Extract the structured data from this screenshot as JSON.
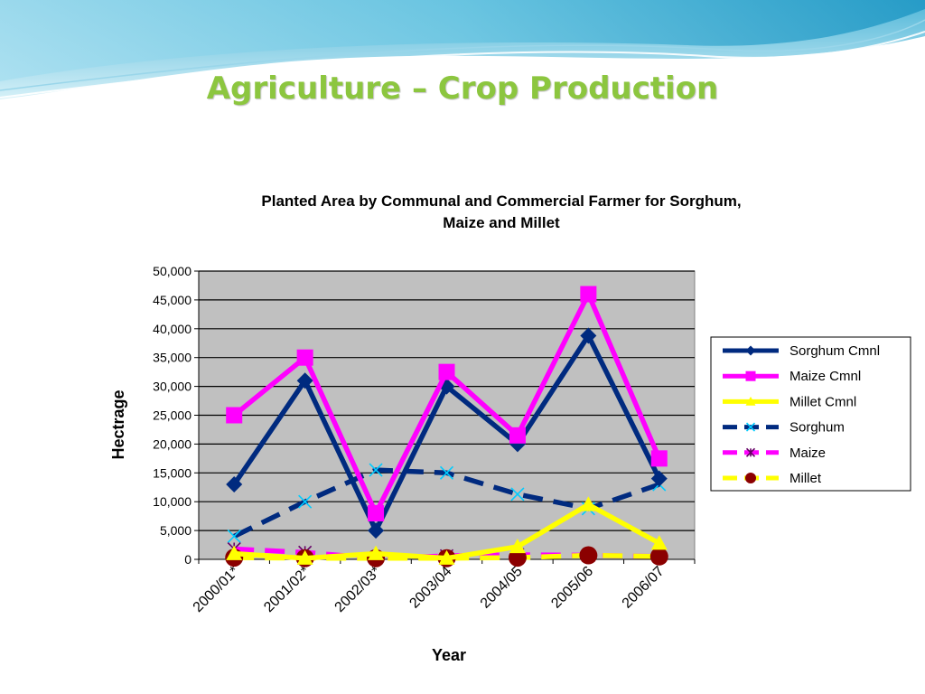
{
  "slide": {
    "title": "Agriculture – Crop Production"
  },
  "colors": {
    "plot_background": "#c0c0c0",
    "wave_light": "#bfe8f2",
    "wave_dark": "#3fa9c9",
    "title": "#8cc63f"
  },
  "chart_data": {
    "type": "line",
    "title_lines": [
      "Planted Area by Communal and Commercial Farmer for Sorghum,",
      "Maize and Millet"
    ],
    "xlabel": "Year",
    "ylabel": "Hectrage",
    "ylim": [
      0,
      50000
    ],
    "yticks": [
      "0",
      "5,000",
      "10,000",
      "15,000",
      "20,000",
      "25,000",
      "30,000",
      "35,000",
      "40,000",
      "45,000",
      "50,000"
    ],
    "categories": [
      "2000/01*",
      "2001/02*",
      "2002/03*",
      "2003/04",
      "2004/05",
      "2005/06",
      "2006/07"
    ],
    "grid": true,
    "legend_position": "right",
    "series": [
      {
        "name": "Sorghum Cmnl",
        "color": "#002a7f",
        "marker": "diamond",
        "dash": "solid",
        "values": [
          13000,
          31000,
          5000,
          30000,
          20000,
          38800,
          14000
        ]
      },
      {
        "name": "Maize Cmnl",
        "color": "#ff00ff",
        "marker": "square",
        "dash": "solid",
        "values": [
          25000,
          35000,
          8000,
          32500,
          21500,
          46000,
          17500
        ]
      },
      {
        "name": "Millet Cmnl",
        "color": "#ffff00",
        "marker": "triangle",
        "dash": "solid",
        "values": [
          1000,
          200,
          1000,
          200,
          2200,
          9500,
          2800
        ]
      },
      {
        "name": "Sorghum",
        "color": "#002a7f",
        "marker": "x",
        "dash": "dashed",
        "values": [
          4000,
          10000,
          15500,
          15000,
          11300,
          8800,
          13000
        ]
      },
      {
        "name": "Maize",
        "color": "#ff00ff",
        "marker": "star",
        "dash": "dashed",
        "values": [
          1800,
          1200,
          200,
          600,
          800,
          700,
          500
        ]
      },
      {
        "name": "Millet",
        "color": "#ffff00",
        "marker": "circle",
        "dash": "dashed",
        "marker_color": "#8b0000",
        "values": [
          300,
          200,
          200,
          200,
          300,
          700,
          500
        ]
      }
    ]
  }
}
